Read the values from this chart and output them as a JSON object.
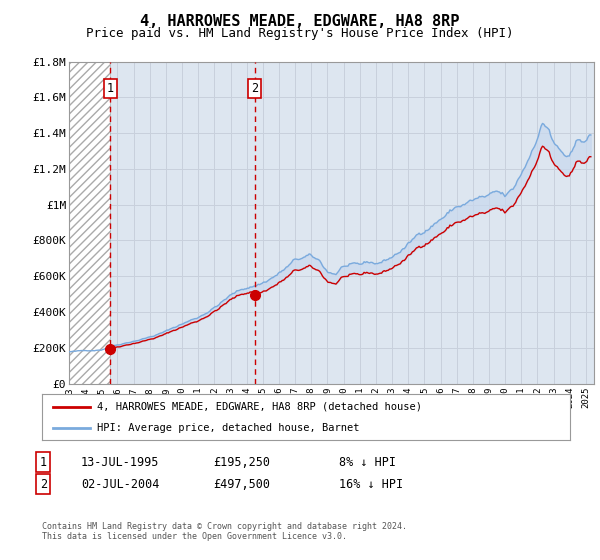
{
  "title": "4, HARROWES MEADE, EDGWARE, HA8 8RP",
  "subtitle": "Price paid vs. HM Land Registry's House Price Index (HPI)",
  "legend_line1": "4, HARROWES MEADE, EDGWARE, HA8 8RP (detached house)",
  "legend_line2": "HPI: Average price, detached house, Barnet",
  "footnote": "Contains HM Land Registry data © Crown copyright and database right 2024.\nThis data is licensed under the Open Government Licence v3.0.",
  "sale1_date": "13-JUL-1995",
  "sale1_price": "£195,250",
  "sale1_hpi": "8% ↓ HPI",
  "sale1_year": 1995.54,
  "sale1_value": 195250,
  "sale2_date": "02-JUL-2004",
  "sale2_price": "£497,500",
  "sale2_hpi": "16% ↓ HPI",
  "sale2_year": 2004.5,
  "sale2_value": 497500,
  "xmin": 1993.0,
  "xmax": 2025.5,
  "ymin": 0,
  "ymax": 1800000,
  "red_color": "#cc0000",
  "blue_color": "#7aaadd",
  "fill_color": "#c8d8ee",
  "hatch_bg": "#e8e8e8",
  "grid_color": "#c8d0dc",
  "chart_bg": "#dde6f0",
  "plot_bg": "#ffffff",
  "title_fontsize": 11,
  "subtitle_fontsize": 9,
  "ytick_labels": [
    "£0",
    "£200K",
    "£400K",
    "£600K",
    "£800K",
    "£1M",
    "£1.2M",
    "£1.4M",
    "£1.6M",
    "£1.8M"
  ],
  "ytick_values": [
    0,
    200000,
    400000,
    600000,
    800000,
    1000000,
    1200000,
    1400000,
    1600000,
    1800000
  ],
  "xtick_years": [
    1993,
    1994,
    1995,
    1996,
    1997,
    1998,
    1999,
    2000,
    2001,
    2002,
    2003,
    2004,
    2005,
    2006,
    2007,
    2008,
    2009,
    2010,
    2011,
    2012,
    2013,
    2014,
    2015,
    2016,
    2017,
    2018,
    2019,
    2020,
    2021,
    2022,
    2023,
    2024,
    2025
  ]
}
